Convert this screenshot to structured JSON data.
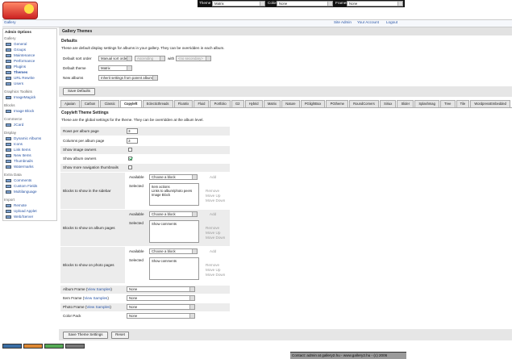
{
  "top_bar": {
    "theme_label": "Theme",
    "theme_value": "Matrix",
    "colorpack_label": "ColorPack",
    "colorpack_value": "None",
    "frames_label": "Frames",
    "frames_value": "None"
  },
  "breadcrumb": "Gallery",
  "user_links": [
    "Site Admin",
    "Your Account",
    "Logout"
  ],
  "sidebar": {
    "title": "Admin Options",
    "groups": [
      {
        "title": "Gallery",
        "items": [
          "General",
          "Groups",
          "Maintenance",
          "Performance",
          "Plugins",
          "Themes",
          "URL Rewrite",
          "Users"
        ]
      },
      {
        "title": "Graphics Toolkits",
        "items": [
          "ImageMagick"
        ]
      },
      {
        "title": "Blocks",
        "items": [
          "Image Block"
        ]
      },
      {
        "title": "Commerce",
        "items": [
          "zCard"
        ]
      },
      {
        "title": "Display",
        "items": [
          "Dynamic Albums",
          "Icons",
          "Link Items",
          "New Items",
          "Thumbnails",
          "Watermarks"
        ]
      },
      {
        "title": "Extra Data",
        "items": [
          "Comments",
          "Custom Fields",
          "Multilanguage"
        ]
      },
      {
        "title": "Import",
        "items": [
          "Remote",
          "Upload Applet",
          "Web/Server"
        ]
      }
    ]
  },
  "main": {
    "title": "Gallery Themes",
    "defaults": {
      "heading": "Defaults",
      "description": "These are default display settings for albums in your gallery. They can be overridden in each album.",
      "sort_label": "Default sort order",
      "sort_order": "Manual sort order",
      "sort_direction": "Ascending",
      "with": "with",
      "secondary": "<no secondary>",
      "theme_label": "Default theme",
      "theme": "Matrix",
      "new_albums_label": "New albums",
      "new_albums": "Inherit settings from parent album",
      "save": "Save Defaults"
    },
    "tabs": [
      "Ajaxian",
      "Carbon",
      "Classic",
      "Copyleft",
      "Eclecticthreads",
      "Floatrix",
      "Fluid",
      "Portfolio",
      "G2",
      "Hybrid",
      "Matrix",
      "Nature",
      "PGlightBox",
      "PGtheme",
      "RoundCorners",
      "Siriux",
      "Slider",
      "Splashmag",
      "Tree",
      "Tile",
      "WordpressEmbedded"
    ],
    "active_tab": 3,
    "settings": {
      "heading": "Copyleft Theme Settings",
      "description": "These are the global settings for the theme. They can be overridden at the album level.",
      "text_rows": [
        {
          "label": "Rows per album page",
          "value": 3
        },
        {
          "label": "Columns per album page",
          "value": 3
        }
      ],
      "checkbox_rows": [
        {
          "label": "Show image owners",
          "checked": false
        },
        {
          "label": "Show album owners",
          "checked": true
        },
        {
          "label": "Show more navigation thumbnails",
          "checked": false
        }
      ],
      "block_rows": [
        {
          "label": "Blocks to show in the sidebar",
          "available_label": "Available",
          "choose": "Choose a block",
          "add": "Add",
          "selected_label": "Selected",
          "selected": [
            "Item actions",
            "Links to album/photo peers",
            "Image Block"
          ],
          "remove": "Remove",
          "move_up": "Move Up",
          "move_down": "Move Down"
        },
        {
          "label": "Blocks to show on album pages",
          "available_label": "Available",
          "choose": "Choose a block",
          "add": "Add",
          "selected_label": "Selected",
          "selected": [
            "Show comments"
          ],
          "remove": "Remove",
          "move_up": "Move Up",
          "move_down": "Move Down"
        },
        {
          "label": "Blocks to show on photo pages",
          "available_label": "Available",
          "choose": "Choose a block",
          "add": "Add",
          "selected_label": "Selected",
          "selected": [
            "Show comments"
          ],
          "remove": "Remove",
          "move_up": "Move Up",
          "move_down": "Move Down"
        }
      ],
      "frame_rows": [
        {
          "label": "Album Frame (",
          "link": "View Samples",
          "close": ")",
          "value": "None"
        },
        {
          "label": "Item Frame (",
          "link": "View Samples",
          "close": ")",
          "value": "None"
        },
        {
          "label": "Photo Frame (",
          "link": "View Samples",
          "close": ")",
          "value": "None"
        },
        {
          "label": "Color Pack",
          "value": "None"
        }
      ],
      "save": "Save Theme Settings",
      "reset": "Reset"
    }
  },
  "footer": {
    "text": "Contact: admin at gallery2.hu - www.gallery2.hu - (c) 2006"
  }
}
